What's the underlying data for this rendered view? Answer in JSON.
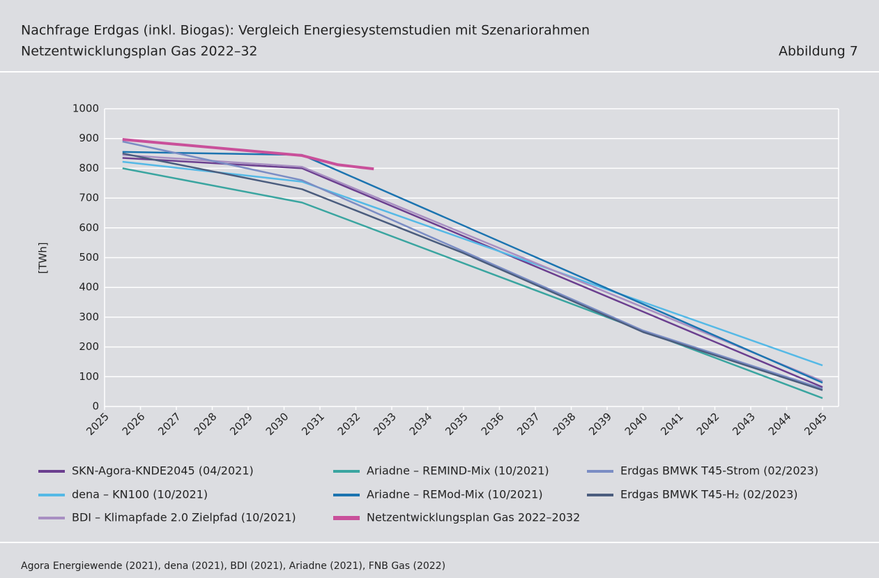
{
  "chart_data": {
    "type": "line",
    "title": "Nachfrage Erdgas (inkl. Biogas): Vergleich Energiesystemstudien mit Szenariorahmen",
    "subtitle": "Netzentwicklungsplan Gas 2022–32",
    "figure_label": "Abbildung 7",
    "y_label": "[TWh]",
    "source": "Agora Energiewende (2021), dena (2021), BDI (2021), Ariadne (2021), FNB Gas (2022)",
    "xlim": [
      2025,
      2045
    ],
    "xticks": [
      2025,
      2026,
      2027,
      2028,
      2029,
      2030,
      2031,
      2032,
      2033,
      2034,
      2035,
      2036,
      2037,
      2038,
      2039,
      2040,
      2041,
      2042,
      2043,
      2044,
      2045
    ],
    "ylim": [
      0,
      1000
    ],
    "yticks": [
      0,
      100,
      200,
      300,
      400,
      500,
      600,
      700,
      800,
      900,
      1000
    ],
    "grid": true,
    "legend": "bottom",
    "series": [
      {
        "name": "SKN-Agora-KNDE2045 (04/2021)",
        "color": "#6b3f8f",
        "x": [
          2025.5,
          2030.5,
          2045
        ],
        "values": [
          835,
          800,
          65
        ]
      },
      {
        "name": "dena – KN100 (10/2021)",
        "color": "#55b9e6",
        "x": [
          2025.5,
          2030.5,
          2045
        ],
        "values": [
          822,
          755,
          138
        ]
      },
      {
        "name": "BDI – Klimapfade 2.0 Zielpfad (10/2021)",
        "color": "#a88fc2",
        "x": [
          2025.5,
          2030.5,
          2045
        ],
        "values": [
          845,
          805,
          85
        ]
      },
      {
        "name": "Ariadne – REMIND-Mix (10/2021)",
        "color": "#3aa5a0",
        "x": [
          2025.5,
          2030.5,
          2045
        ],
        "values": [
          800,
          685,
          28
        ]
      },
      {
        "name": "Ariadne – REMod-Mix (10/2021)",
        "color": "#1c74b0",
        "x": [
          2025.5,
          2030.5,
          2045
        ],
        "values": [
          855,
          845,
          80
        ]
      },
      {
        "name": "Netzentwicklungsplan Gas 2022–2032",
        "color": "#c9509a",
        "x": [
          2025.5,
          2030.5,
          2031.5,
          2032.5
        ],
        "values": [
          897,
          843,
          812,
          798
        ]
      },
      {
        "name": "Erdgas BMWK T45-Strom (02/2023)",
        "color": "#7b8dc4",
        "x": [
          2025.5,
          2030.5,
          2040,
          2045
        ],
        "values": [
          890,
          760,
          255,
          60
        ]
      },
      {
        "name": "Erdgas BMWK T45-H₂ (02/2023)",
        "color": "#4b5d7e",
        "x": [
          2025.5,
          2030.5,
          2035,
          2040,
          2045
        ],
        "values": [
          850,
          730,
          515,
          250,
          55
        ]
      }
    ]
  }
}
